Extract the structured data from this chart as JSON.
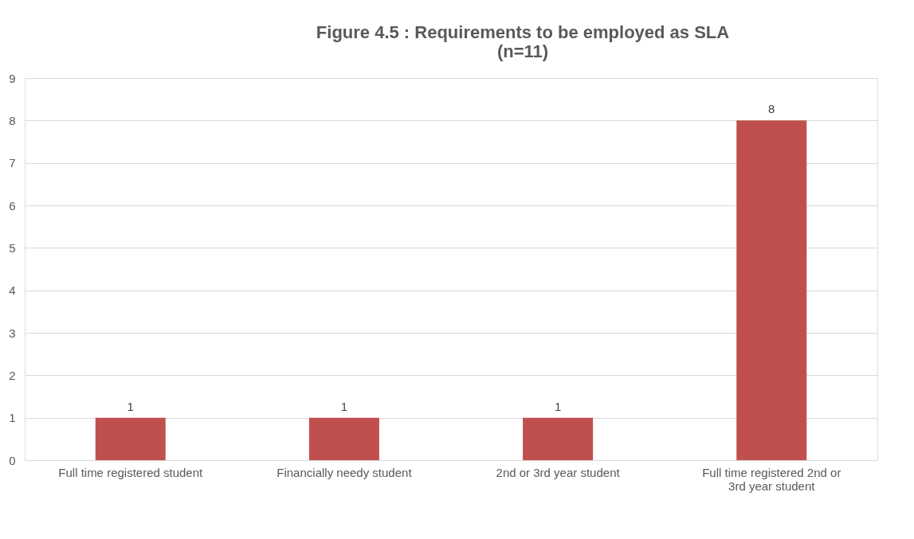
{
  "chart_data": {
    "type": "bar",
    "title": "Figure 4.5 : Requirements to be employed as SLA (n=11)",
    "categories": [
      "Full time registered student",
      "Financially needy student",
      "2nd or 3rd year student",
      "Full time registered 2nd or 3rd year student"
    ],
    "values": [
      1,
      1,
      1,
      8
    ],
    "color": "#c0504d",
    "ylim": [
      0,
      9
    ],
    "yticks": [
      0,
      1,
      2,
      3,
      4,
      5,
      6,
      7,
      8,
      9
    ],
    "grid": "y",
    "data_labels": true
  }
}
